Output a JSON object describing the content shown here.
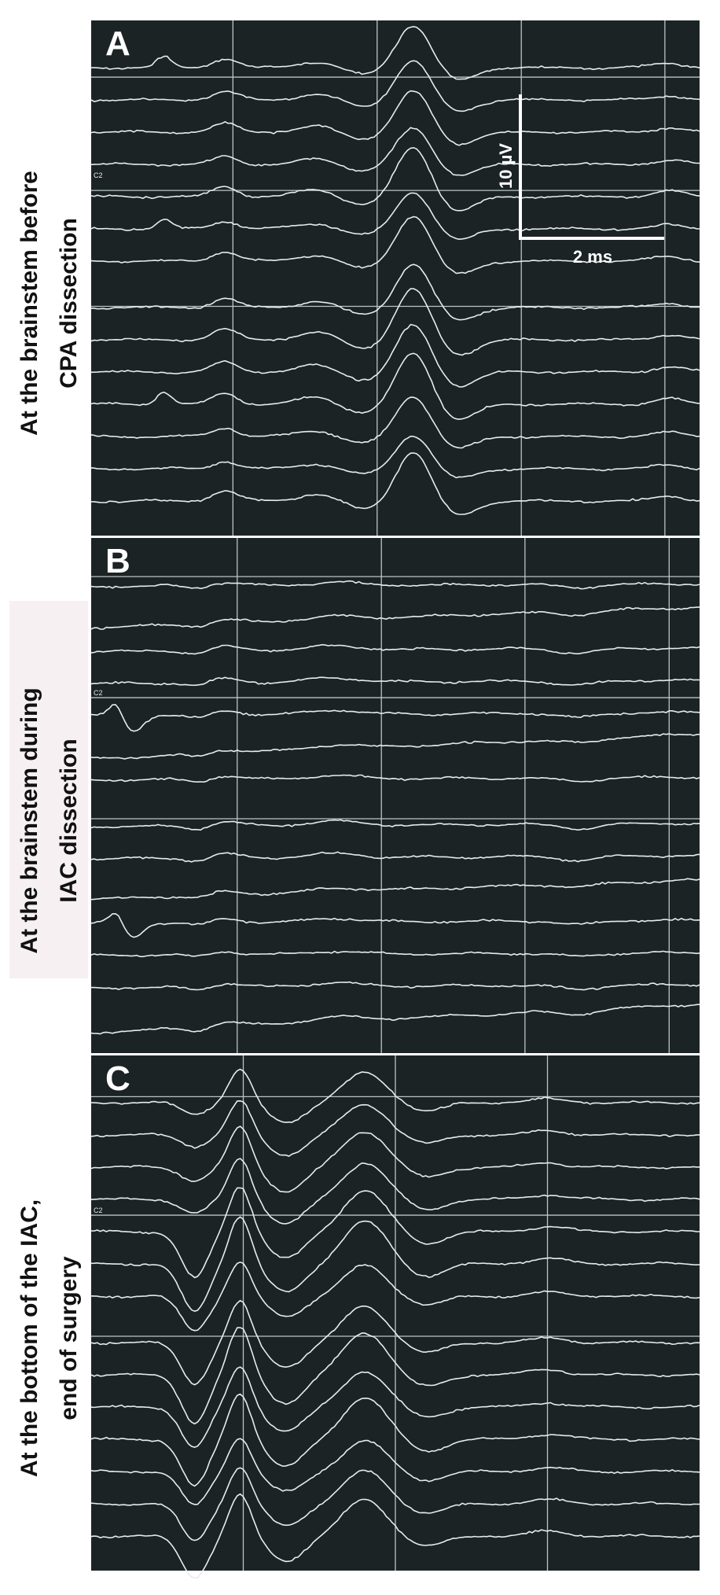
{
  "panels": [
    {
      "letter": "A",
      "label_lines": [
        "At the brainstem before",
        "CPA dissection"
      ],
      "channel_label": "C2"
    },
    {
      "letter": "B",
      "label_lines": [
        "At the brainstem during",
        "IAC dissection"
      ],
      "channel_label": "C2"
    },
    {
      "letter": "C",
      "label_lines": [
        "At the bottom of the IAC,",
        "end of surgery"
      ],
      "channel_label": "C2"
    }
  ],
  "scale_bar": {
    "amplitude": "10 µV",
    "time": "2 ms"
  }
}
